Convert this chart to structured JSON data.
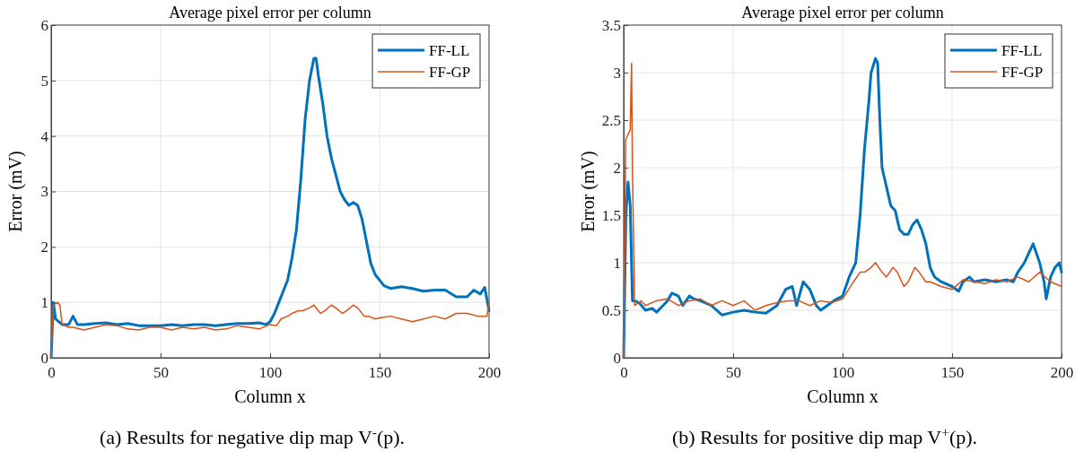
{
  "chart_data": [
    {
      "type": "line",
      "title": "Average pixel error per column",
      "xlabel": "Column x",
      "ylabel": "Error (mV)",
      "xlim": [
        0,
        200
      ],
      "xticks": [
        0,
        50,
        100,
        150,
        200
      ],
      "ylim": [
        0,
        6
      ],
      "yticks": [
        0,
        1,
        2,
        3,
        4,
        5,
        6
      ],
      "grid": true,
      "legend": "top right",
      "annotations": [
        "(a) Results for negative dip map V$^{-}$(p)."
      ],
      "series": [
        {
          "name": "FF-LL",
          "color": "#0072bd",
          "x": [
            0,
            1,
            2,
            5,
            8,
            10,
            12,
            15,
            20,
            25,
            30,
            35,
            40,
            45,
            50,
            55,
            60,
            65,
            70,
            75,
            80,
            85,
            90,
            95,
            98,
            100,
            102,
            104,
            106,
            108,
            110,
            112,
            114,
            116,
            118,
            120,
            121,
            122,
            124,
            126,
            128,
            130,
            132,
            134,
            136,
            138,
            140,
            142,
            144,
            146,
            148,
            150,
            152,
            155,
            160,
            165,
            170,
            175,
            180,
            185,
            190,
            193,
            196,
            198,
            200
          ],
          "values": [
            0,
            1.0,
            0.7,
            0.6,
            0.6,
            0.75,
            0.6,
            0.6,
            0.62,
            0.63,
            0.6,
            0.62,
            0.58,
            0.58,
            0.58,
            0.6,
            0.58,
            0.6,
            0.6,
            0.58,
            0.6,
            0.62,
            0.62,
            0.63,
            0.6,
            0.65,
            0.8,
            1.0,
            1.2,
            1.4,
            1.8,
            2.3,
            3.2,
            4.3,
            5.0,
            5.4,
            5.4,
            5.1,
            4.6,
            4.0,
            3.6,
            3.3,
            3.0,
            2.85,
            2.75,
            2.8,
            2.75,
            2.5,
            2.1,
            1.7,
            1.5,
            1.4,
            1.3,
            1.25,
            1.28,
            1.25,
            1.2,
            1.22,
            1.22,
            1.1,
            1.1,
            1.22,
            1.15,
            1.27,
            0.85
          ]
        },
        {
          "name": "FF-GP",
          "color": "#d95319",
          "x": [
            0,
            1,
            3,
            4,
            5,
            8,
            10,
            15,
            20,
            25,
            30,
            35,
            40,
            45,
            50,
            55,
            60,
            65,
            70,
            75,
            80,
            85,
            90,
            95,
            100,
            103,
            105,
            108,
            110,
            113,
            115,
            118,
            120,
            123,
            125,
            128,
            130,
            133,
            135,
            138,
            140,
            143,
            145,
            148,
            150,
            155,
            160,
            165,
            170,
            175,
            180,
            185,
            190,
            195,
            199,
            200
          ],
          "values": [
            0,
            0.95,
            1.0,
            0.95,
            0.6,
            0.55,
            0.55,
            0.5,
            0.55,
            0.6,
            0.58,
            0.52,
            0.5,
            0.55,
            0.55,
            0.5,
            0.55,
            0.52,
            0.55,
            0.5,
            0.52,
            0.58,
            0.55,
            0.52,
            0.6,
            0.58,
            0.7,
            0.75,
            0.8,
            0.85,
            0.85,
            0.9,
            0.95,
            0.8,
            0.85,
            0.95,
            0.9,
            0.8,
            0.85,
            0.95,
            0.9,
            0.75,
            0.75,
            0.7,
            0.72,
            0.75,
            0.7,
            0.65,
            0.7,
            0.75,
            0.7,
            0.8,
            0.8,
            0.75,
            0.75,
            1.0
          ]
        }
      ]
    },
    {
      "type": "line",
      "title": "Average pixel error per column",
      "xlabel": "Column x",
      "ylabel": "Error (mV)",
      "xlim": [
        0,
        200
      ],
      "xticks": [
        0,
        50,
        100,
        150,
        200
      ],
      "ylim": [
        0,
        3.5
      ],
      "yticks": [
        0,
        0.5,
        1,
        1.5,
        2,
        2.5,
        3,
        3.5
      ],
      "grid": true,
      "legend": "top right",
      "annotations": [
        "(b) Results for positive dip map V$^{+}$(p)."
      ],
      "series": [
        {
          "name": "FF-LL",
          "color": "#0072bd",
          "x": [
            0,
            1,
            2,
            3,
            4,
            5,
            7,
            10,
            13,
            15,
            18,
            20,
            22,
            25,
            27,
            30,
            32,
            35,
            40,
            45,
            50,
            55,
            60,
            65,
            70,
            74,
            77,
            79,
            82,
            85,
            88,
            90,
            93,
            96,
            100,
            103,
            106,
            108,
            110,
            112,
            113,
            115,
            116,
            117,
            118,
            120,
            122,
            124,
            126,
            128,
            130,
            132,
            134,
            136,
            138,
            140,
            142,
            145,
            150,
            153,
            155,
            158,
            160,
            165,
            170,
            175,
            178,
            180,
            183,
            185,
            187,
            190,
            192,
            193,
            195,
            197,
            199,
            200
          ],
          "values": [
            0,
            1.5,
            1.85,
            1.6,
            0.6,
            0.6,
            0.58,
            0.5,
            0.52,
            0.48,
            0.55,
            0.6,
            0.68,
            0.65,
            0.55,
            0.65,
            0.62,
            0.6,
            0.55,
            0.45,
            0.48,
            0.5,
            0.48,
            0.47,
            0.55,
            0.72,
            0.75,
            0.55,
            0.8,
            0.72,
            0.55,
            0.5,
            0.55,
            0.6,
            0.65,
            0.85,
            1.0,
            1.5,
            2.2,
            2.7,
            3.0,
            3.15,
            3.1,
            2.5,
            2.0,
            1.8,
            1.6,
            1.55,
            1.35,
            1.3,
            1.3,
            1.4,
            1.45,
            1.35,
            1.2,
            0.95,
            0.85,
            0.8,
            0.75,
            0.7,
            0.8,
            0.85,
            0.8,
            0.82,
            0.8,
            0.82,
            0.8,
            0.9,
            1.0,
            1.1,
            1.2,
            1.0,
            0.8,
            0.62,
            0.85,
            0.95,
            1.0,
            0.9
          ]
        },
        {
          "name": "FF-GP",
          "color": "#d95319",
          "x": [
            0,
            1,
            2,
            3,
            3.6,
            4,
            5,
            8,
            10,
            15,
            20,
            25,
            30,
            35,
            40,
            45,
            50,
            55,
            60,
            65,
            70,
            75,
            80,
            85,
            90,
            95,
            100,
            105,
            108,
            110,
            113,
            115,
            118,
            120,
            123,
            125,
            128,
            130,
            133,
            135,
            138,
            140,
            145,
            150,
            155,
            160,
            165,
            170,
            175,
            180,
            185,
            190,
            195,
            200
          ],
          "values": [
            0,
            2.3,
            2.35,
            2.4,
            3.1,
            2.0,
            0.55,
            0.6,
            0.55,
            0.6,
            0.62,
            0.55,
            0.6,
            0.62,
            0.55,
            0.6,
            0.55,
            0.6,
            0.5,
            0.55,
            0.58,
            0.6,
            0.6,
            0.55,
            0.6,
            0.58,
            0.62,
            0.8,
            0.9,
            0.9,
            0.95,
            1.0,
            0.9,
            0.85,
            0.95,
            0.9,
            0.75,
            0.8,
            0.95,
            0.9,
            0.8,
            0.8,
            0.75,
            0.72,
            0.82,
            0.8,
            0.78,
            0.82,
            0.8,
            0.85,
            0.8,
            0.9,
            0.8,
            0.75
          ]
        }
      ]
    }
  ]
}
